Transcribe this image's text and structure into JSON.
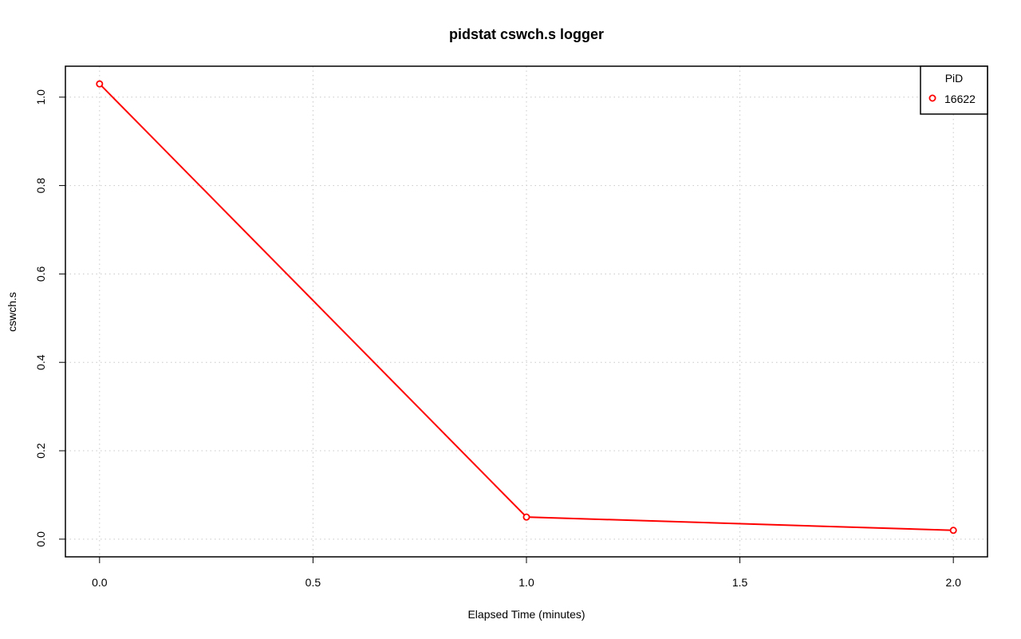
{
  "chart_data": {
    "type": "line",
    "title": "pidstat cswch.s logger",
    "xlabel": "Elapsed Time (minutes)",
    "ylabel": "cswch.s",
    "xlim": [
      -0.08,
      2.08
    ],
    "ylim": [
      -0.04,
      1.07
    ],
    "x_ticks": [
      0.0,
      0.5,
      1.0,
      1.5,
      2.0
    ],
    "x_tick_labels": [
      "0.0",
      "0.5",
      "1.0",
      "1.5",
      "2.0"
    ],
    "y_ticks": [
      0.0,
      0.2,
      0.4,
      0.6,
      0.8,
      1.0
    ],
    "y_tick_labels": [
      "0.0",
      "0.2",
      "0.4",
      "0.6",
      "0.8",
      "1.0"
    ],
    "grid": true,
    "legend_title": "PiD",
    "legend_position": "top-right",
    "series": [
      {
        "name": "16622",
        "color": "#ff0000",
        "x": [
          0.0,
          1.0,
          2.0
        ],
        "y": [
          1.03,
          0.05,
          0.02
        ]
      }
    ]
  }
}
